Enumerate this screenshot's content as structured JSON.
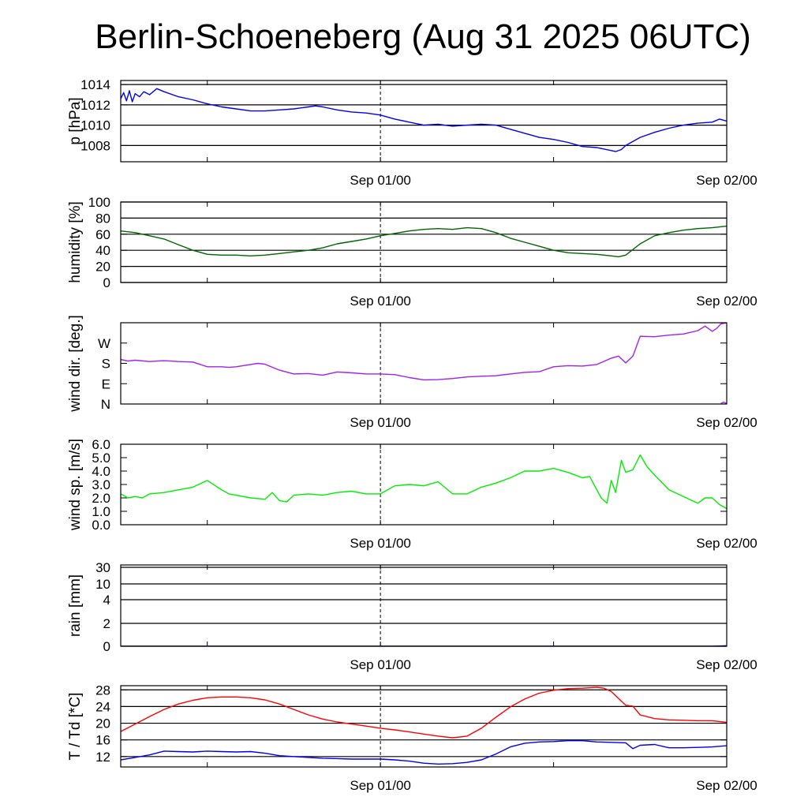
{
  "title": "Berlin-Schoeneberg (Aug 31 2025 06UTC)",
  "time_axis": {
    "unit": "hours since Aug 31 2025 06UTC",
    "range": [
      0,
      42
    ],
    "tick_labels": [
      {
        "x": 18,
        "label": "Sep 01/00"
      },
      {
        "x": 42,
        "label": "Sep 02/00"
      }
    ],
    "minor_ticks": [
      6,
      18,
      30
    ],
    "now_marker": 18
  },
  "chart_data": [
    {
      "type": "line",
      "id": "pressure",
      "ylabel": "p [hPa]",
      "ylim": [
        1006.4,
        1014.4
      ],
      "yticks": [
        1008,
        1010,
        1012,
        1014
      ],
      "ytick_labels": [
        "1008",
        "1010",
        "1012",
        "1014"
      ],
      "grid": true,
      "series": [
        {
          "color": "#0000ee",
          "x": [
            0,
            0.2,
            0.4,
            0.6,
            0.8,
            1,
            1.3,
            1.6,
            2,
            2.5,
            3,
            4,
            5,
            6,
            7,
            8,
            9,
            10,
            11,
            12,
            13,
            13.5,
            14,
            15,
            16,
            17,
            18,
            19,
            20,
            21,
            22,
            23,
            24,
            25,
            26,
            27,
            28,
            29,
            30,
            31,
            32,
            33,
            34,
            34.3,
            34.7,
            35,
            36,
            37,
            38,
            39,
            40,
            41,
            41.5,
            42
          ],
          "y": [
            1012.6,
            1013.2,
            1012.4,
            1013.4,
            1012.3,
            1013.1,
            1012.8,
            1013.3,
            1013.0,
            1013.6,
            1013.3,
            1012.8,
            1012.5,
            1012.1,
            1011.8,
            1011.6,
            1011.4,
            1011.4,
            1011.5,
            1011.6,
            1011.8,
            1011.9,
            1011.8,
            1011.5,
            1011.3,
            1011.2,
            1011.0,
            1010.6,
            1010.3,
            1010.0,
            1010.1,
            1009.9,
            1010.0,
            1010.1,
            1010.0,
            1009.6,
            1009.2,
            1008.8,
            1008.6,
            1008.3,
            1007.9,
            1007.8,
            1007.5,
            1007.4,
            1007.6,
            1008.0,
            1008.8,
            1009.3,
            1009.7,
            1010.0,
            1010.2,
            1010.3,
            1010.6,
            1010.4
          ]
        }
      ]
    },
    {
      "type": "line",
      "id": "humidity",
      "ylabel": "humidity [%]",
      "ylim": [
        0,
        100
      ],
      "yticks": [
        0,
        20,
        40,
        60,
        80,
        100
      ],
      "ytick_labels": [
        "0",
        "20",
        "40",
        "60",
        "80",
        "100"
      ],
      "grid": true,
      "series": [
        {
          "color": "#006400",
          "x": [
            0,
            1,
            2,
            3,
            4,
            5,
            6,
            7,
            8,
            9,
            10,
            11,
            12,
            13,
            14,
            15,
            16,
            17,
            18,
            19,
            20,
            21,
            22,
            23,
            24,
            25,
            26,
            27,
            28,
            29,
            30,
            31,
            32,
            33,
            33.5,
            34,
            34.5,
            35,
            36,
            37,
            38,
            39,
            40,
            41,
            42
          ],
          "y": [
            64,
            62,
            58,
            54,
            47,
            40,
            35,
            34,
            34,
            33,
            34,
            36,
            38,
            40,
            43,
            48,
            51,
            54,
            58,
            61,
            64,
            66,
            67,
            66,
            68,
            67,
            62,
            55,
            50,
            45,
            40,
            37,
            36,
            35,
            34,
            33,
            32,
            34,
            48,
            58,
            62,
            65,
            67,
            68,
            70
          ]
        }
      ]
    },
    {
      "type": "line",
      "id": "wind_direction",
      "ylabel": "wind dir. [deg.]",
      "ylim": [
        0,
        360
      ],
      "yticks": [
        0,
        90,
        180,
        270
      ],
      "ytick_labels": [
        "N",
        "E",
        "S",
        "W"
      ],
      "grid": false,
      "series": [
        {
          "color": "#a020f0",
          "x": [
            0,
            0.5,
            1,
            2,
            3,
            4,
            5,
            6,
            7,
            7.5,
            8,
            9,
            9.5,
            10,
            11,
            12,
            13,
            14,
            15,
            16,
            17,
            18,
            19,
            20,
            21,
            22,
            23,
            24,
            25,
            26,
            27,
            28,
            29,
            30,
            31,
            32,
            33,
            34,
            34.5,
            35,
            35.5,
            36,
            37,
            38,
            39,
            40,
            40.5,
            41,
            41.3,
            41.6,
            42
          ],
          "y": [
            197,
            190,
            194,
            188,
            192,
            188,
            186,
            165,
            165,
            162,
            165,
            175,
            180,
            176,
            150,
            133,
            135,
            128,
            142,
            138,
            133,
            133,
            130,
            117,
            107,
            108,
            113,
            120,
            123,
            125,
            133,
            140,
            143,
            165,
            170,
            168,
            175,
            203,
            212,
            182,
            212,
            300,
            298,
            305,
            310,
            325,
            345,
            322,
            335,
            355,
            360
          ]
        },
        {
          "color": "#a020f0",
          "x": [
            41.6,
            41.8,
            42
          ],
          "y": [
            3,
            8,
            2
          ]
        }
      ]
    },
    {
      "type": "line",
      "id": "wind_speed",
      "ylabel": "wind sp. [m/s]",
      "ylim": [
        0,
        6
      ],
      "yticks": [
        0,
        1,
        2,
        3,
        4,
        5,
        6
      ],
      "ytick_labels": [
        "0.0",
        "1.0",
        "2.0",
        "3.0",
        "4.0",
        "5.0",
        "6.0"
      ],
      "grid": false,
      "series": [
        {
          "color": "#00ee00",
          "x": [
            0,
            0.5,
            1,
            1.5,
            2,
            3,
            4,
            5,
            6,
            7,
            7.5,
            8,
            9,
            10,
            10.5,
            11,
            11.5,
            12,
            13,
            14,
            15,
            16,
            17,
            18,
            19,
            20,
            21,
            22,
            23,
            24,
            25,
            26,
            27,
            28,
            29,
            30,
            31,
            32,
            32.5,
            33,
            33.3,
            33.7,
            34,
            34.3,
            34.7,
            35,
            35.5,
            36,
            36.5,
            37,
            38,
            39,
            40,
            40.5,
            41,
            41.5,
            42
          ],
          "y": [
            2.3,
            2.0,
            2.1,
            2.0,
            2.3,
            2.4,
            2.6,
            2.8,
            3.3,
            2.6,
            2.3,
            2.2,
            2.0,
            1.9,
            2.4,
            1.8,
            1.7,
            2.2,
            2.3,
            2.2,
            2.4,
            2.5,
            2.3,
            2.3,
            2.9,
            3.0,
            2.9,
            3.2,
            2.3,
            2.3,
            2.8,
            3.1,
            3.5,
            4.0,
            4.0,
            4.2,
            3.9,
            3.5,
            3.6,
            2.6,
            2.0,
            1.6,
            3.3,
            2.4,
            4.8,
            3.9,
            4.1,
            5.2,
            4.3,
            3.7,
            2.6,
            2.1,
            1.6,
            2.0,
            2.0,
            1.5,
            1.2
          ]
        }
      ]
    },
    {
      "type": "line",
      "id": "rain",
      "ylabel": "rain [mm]",
      "ylim": [
        0,
        30
      ],
      "yscale": "nonlinear",
      "yticks": [
        0,
        2,
        4,
        10,
        30
      ],
      "ytick_labels": [
        "0",
        "2",
        "4",
        "10",
        "30"
      ],
      "grid": true,
      "series": [
        {
          "color": "#0000ee",
          "x": [
            0,
            41,
            41.5,
            42
          ],
          "y": [
            0,
            0,
            0.02,
            0.05
          ]
        }
      ]
    },
    {
      "type": "line",
      "id": "temperature",
      "ylabel": "T / Td [*C]",
      "ylim": [
        9.5,
        29
      ],
      "yticks": [
        12,
        16,
        20,
        24,
        28
      ],
      "ytick_labels": [
        "12",
        "16",
        "20",
        "24",
        "28"
      ],
      "grid": true,
      "series": [
        {
          "color": "#ff0000",
          "x": [
            0,
            1,
            2,
            3,
            4,
            5,
            6,
            7,
            8,
            9,
            10,
            11,
            12,
            13,
            14,
            15,
            16,
            17,
            18,
            19,
            20,
            21,
            22,
            23,
            24,
            25,
            26,
            27,
            28,
            29,
            30,
            31,
            32,
            33,
            33.5,
            34,
            35,
            35.5,
            36,
            37,
            38,
            39,
            40,
            41,
            42
          ],
          "y": [
            18.0,
            19.8,
            21.6,
            23.3,
            24.6,
            25.5,
            26.1,
            26.3,
            26.3,
            26.1,
            25.6,
            24.6,
            23.3,
            22.0,
            21.0,
            20.3,
            19.8,
            19.3,
            18.8,
            18.4,
            17.9,
            17.4,
            16.9,
            16.5,
            16.9,
            18.8,
            21.4,
            23.9,
            25.8,
            27.2,
            27.9,
            28.3,
            28.4,
            28.6,
            28.4,
            27.6,
            24.3,
            24.1,
            22.0,
            21.1,
            20.8,
            20.7,
            20.6,
            20.6,
            20.2
          ]
        },
        {
          "color": "#0000ee",
          "x": [
            0,
            1,
            2,
            3,
            4,
            5,
            6,
            7,
            8,
            9,
            10,
            11,
            12,
            13,
            14,
            15,
            16,
            17,
            18,
            19,
            20,
            21,
            22,
            23,
            24,
            25,
            26,
            27,
            28,
            29,
            30,
            31,
            32,
            33,
            34,
            35,
            35.5,
            36,
            37,
            38,
            39,
            40,
            41,
            42
          ],
          "y": [
            11.2,
            11.8,
            12.4,
            13.3,
            13.2,
            13.1,
            13.3,
            13.2,
            13.1,
            13.2,
            12.8,
            12.2,
            12.0,
            11.8,
            11.6,
            11.5,
            11.4,
            11.4,
            11.4,
            11.2,
            10.9,
            10.4,
            10.2,
            10.3,
            10.6,
            11.2,
            12.6,
            14.3,
            15.2,
            15.5,
            15.6,
            15.8,
            15.8,
            15.5,
            15.4,
            15.3,
            13.9,
            14.7,
            14.9,
            14.1,
            14.1,
            14.2,
            14.3,
            14.6
          ]
        }
      ]
    }
  ]
}
